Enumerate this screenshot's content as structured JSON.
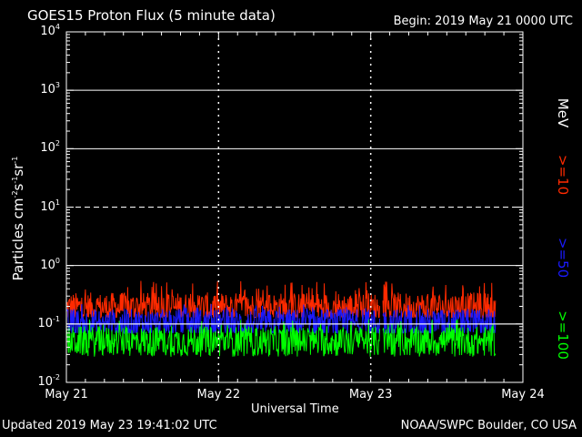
{
  "header": {
    "title": "GOES15 Proton Flux (5 minute data)",
    "begin": "Begin: 2019 May 21 0000 UTC"
  },
  "footer": {
    "updated": "Updated 2019 May 23 19:41:02 UTC",
    "source": "NOAA/SWPC Boulder, CO USA"
  },
  "colors": {
    "background": "#000000",
    "axes": "#ffffff",
    "ge10": "#ff2a00",
    "ge50": "#1a1aff",
    "ge100": "#00ff00"
  },
  "chart_data": {
    "type": "line",
    "title": "GOES15 Proton Flux (5 minute data)",
    "xlabel": "Universal Time",
    "ylabel_parts": {
      "base": "Particles cm",
      "e1": "-2",
      "mid1": "s",
      "e2": "-1",
      "mid2": "sr",
      "e3": "-1"
    },
    "x_ticks": [
      "May 21",
      "May 22",
      "May 23",
      "May 24"
    ],
    "x_range_days": [
      0,
      3
    ],
    "y_scale": "log",
    "ylim": [
      0.01,
      10000
    ],
    "y_ticks": [
      {
        "base": "10",
        "exp": "-2"
      },
      {
        "base": "10",
        "exp": "-1"
      },
      {
        "base": "10",
        "exp": "0"
      },
      {
        "base": "10",
        "exp": "1"
      },
      {
        "base": "10",
        "exp": "2"
      },
      {
        "base": "10",
        "exp": "3"
      },
      {
        "base": "10",
        "exp": "4"
      }
    ],
    "legend_title": "MeV",
    "data_gap_days": [
      2.06,
      2.08
    ],
    "data_end_day": 2.82,
    "series": [
      {
        "name": ">=10",
        "color": "#ff2a00",
        "typical": 0.19,
        "min": 0.13,
        "max": 0.55
      },
      {
        "name": ">=50",
        "color": "#1a1aff",
        "typical": 0.1,
        "min": 0.07,
        "max": 0.22
      },
      {
        "name": ">=100",
        "color": "#00ff00",
        "typical": 0.05,
        "min": 0.025,
        "max": 0.12
      }
    ],
    "threshold_lines": [
      10,
      0.1
    ],
    "grid": true
  }
}
